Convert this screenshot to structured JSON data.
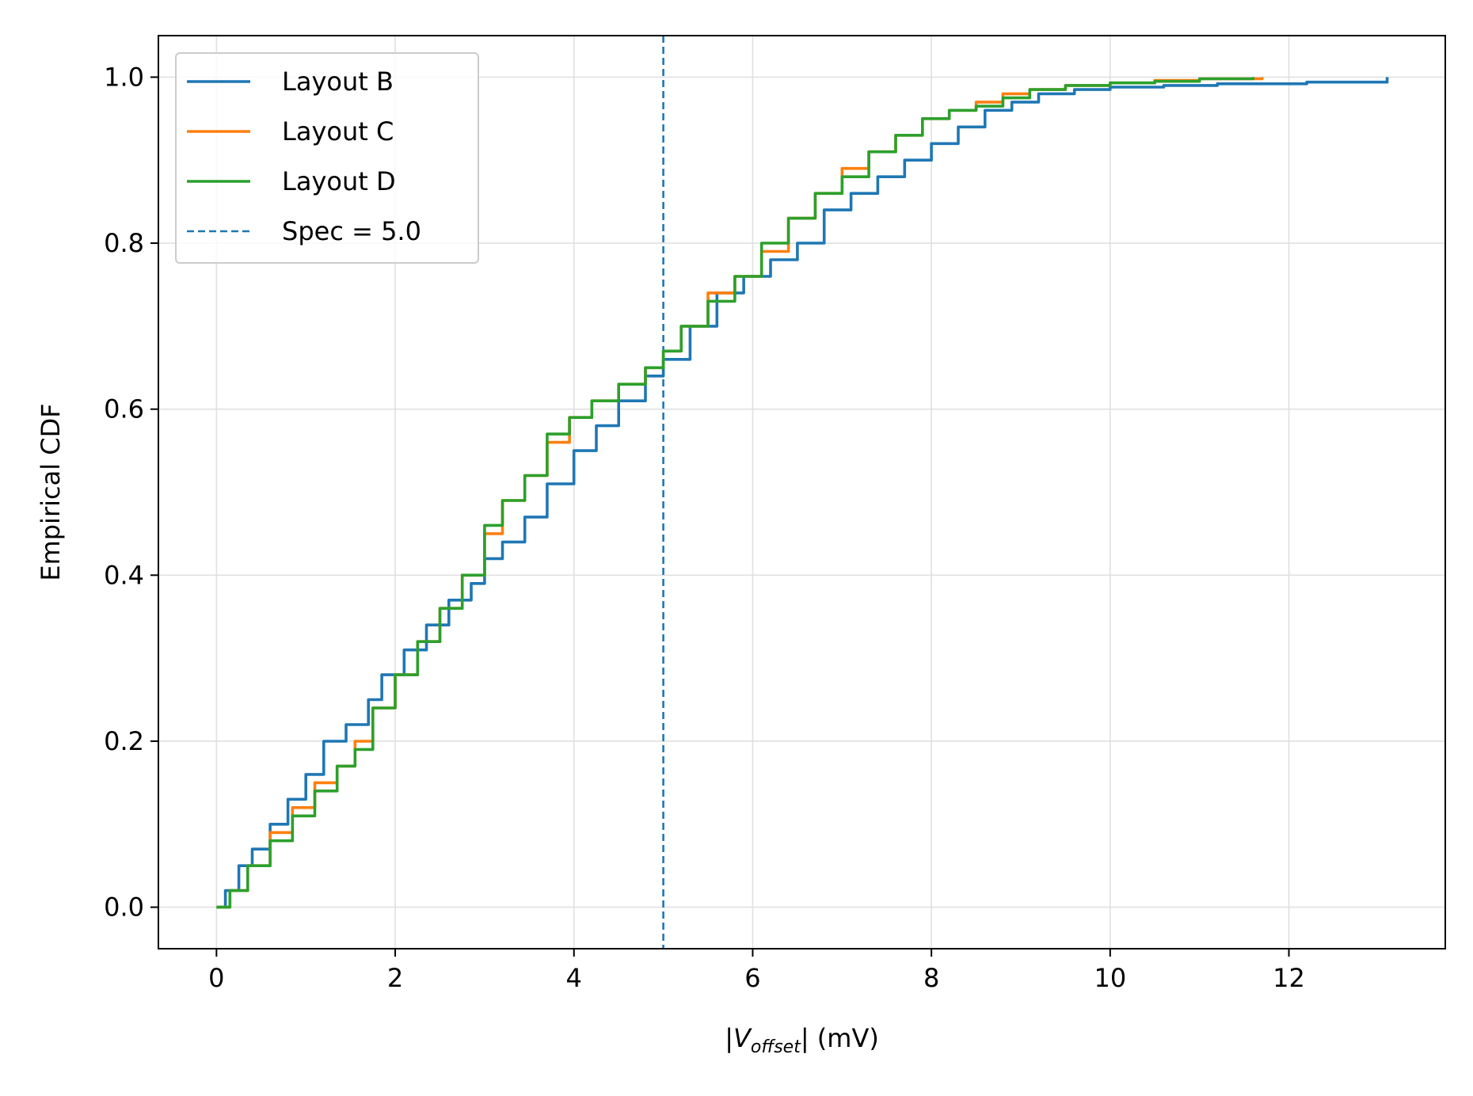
{
  "chart_data": {
    "type": "line",
    "title": "",
    "xlabel": {
      "prefix": "|",
      "var": "V",
      "sub": "offset",
      "suffix": "| (mV)"
    },
    "ylabel": "Empirical CDF",
    "xlim": [
      -0.65,
      13.75
    ],
    "ylim": [
      -0.05,
      1.05
    ],
    "xticks": [
      0,
      2,
      4,
      6,
      8,
      10,
      12
    ],
    "xtick_labels": [
      "0",
      "2",
      "4",
      "6",
      "8",
      "10",
      "12"
    ],
    "yticks": [
      0.0,
      0.2,
      0.4,
      0.6,
      0.8,
      1.0
    ],
    "ytick_labels": [
      "0.0",
      "0.2",
      "0.4",
      "0.6",
      "0.8",
      "1.0"
    ],
    "grid": true,
    "legend_position": "upper-left",
    "series": [
      {
        "name": "Layout B",
        "color": "#1f77b4",
        "x": [
          0,
          0.1,
          0.25,
          0.4,
          0.6,
          0.8,
          1.0,
          1.2,
          1.45,
          1.7,
          1.85,
          2.1,
          2.35,
          2.6,
          2.85,
          3.0,
          3.2,
          3.45,
          3.7,
          4.0,
          4.25,
          4.5,
          4.8,
          5.0,
          5.3,
          5.6,
          5.9,
          6.2,
          6.5,
          6.8,
          7.1,
          7.4,
          7.7,
          8.0,
          8.3,
          8.6,
          8.9,
          9.2,
          9.6,
          10.0,
          10.6,
          11.2,
          12.2,
          13.1
        ],
        "values": [
          0.0,
          0.02,
          0.05,
          0.07,
          0.1,
          0.13,
          0.16,
          0.2,
          0.22,
          0.25,
          0.28,
          0.31,
          0.34,
          0.37,
          0.39,
          0.42,
          0.44,
          0.47,
          0.51,
          0.55,
          0.58,
          0.61,
          0.64,
          0.66,
          0.7,
          0.74,
          0.76,
          0.78,
          0.8,
          0.84,
          0.86,
          0.88,
          0.9,
          0.92,
          0.94,
          0.96,
          0.97,
          0.98,
          0.985,
          0.988,
          0.99,
          0.992,
          0.994,
          1.0
        ]
      },
      {
        "name": "Layout C",
        "color": "#ff7f0e",
        "x": [
          0,
          0.15,
          0.35,
          0.6,
          0.85,
          1.1,
          1.35,
          1.55,
          1.75,
          2.0,
          2.25,
          2.5,
          2.75,
          3.0,
          3.2,
          3.45,
          3.7,
          3.95,
          4.2,
          4.5,
          4.8,
          5.0,
          5.2,
          5.5,
          5.8,
          6.1,
          6.4,
          6.7,
          7.0,
          7.3,
          7.6,
          7.9,
          8.2,
          8.5,
          8.8,
          9.1,
          9.5,
          10.0,
          10.5,
          11.0,
          11.7
        ],
        "values": [
          0.0,
          0.02,
          0.05,
          0.09,
          0.12,
          0.15,
          0.17,
          0.2,
          0.24,
          0.28,
          0.32,
          0.36,
          0.4,
          0.45,
          0.49,
          0.52,
          0.56,
          0.59,
          0.61,
          0.63,
          0.65,
          0.67,
          0.7,
          0.74,
          0.76,
          0.79,
          0.83,
          0.86,
          0.89,
          0.91,
          0.93,
          0.95,
          0.96,
          0.97,
          0.98,
          0.985,
          0.99,
          0.993,
          0.996,
          0.998,
          1.0
        ]
      },
      {
        "name": "Layout D",
        "color": "#2ca02c",
        "x": [
          0,
          0.15,
          0.35,
          0.6,
          0.85,
          1.1,
          1.35,
          1.55,
          1.75,
          2.0,
          2.25,
          2.5,
          2.75,
          3.0,
          3.2,
          3.45,
          3.7,
          3.95,
          4.2,
          4.5,
          4.8,
          5.0,
          5.2,
          5.5,
          5.8,
          6.1,
          6.4,
          6.7,
          7.0,
          7.3,
          7.6,
          7.9,
          8.2,
          8.5,
          8.8,
          9.1,
          9.5,
          10.0,
          10.5,
          11.0,
          11.6
        ],
        "values": [
          0.0,
          0.02,
          0.05,
          0.08,
          0.11,
          0.14,
          0.17,
          0.19,
          0.24,
          0.28,
          0.32,
          0.36,
          0.4,
          0.46,
          0.49,
          0.52,
          0.57,
          0.59,
          0.61,
          0.63,
          0.65,
          0.67,
          0.7,
          0.73,
          0.76,
          0.8,
          0.83,
          0.86,
          0.88,
          0.91,
          0.93,
          0.95,
          0.96,
          0.965,
          0.975,
          0.985,
          0.99,
          0.993,
          0.995,
          0.998,
          1.0
        ]
      }
    ],
    "reference_line": {
      "name": "Spec = 5.0",
      "x": 5.0,
      "color": "#1f77b4",
      "style": "dashed"
    }
  }
}
